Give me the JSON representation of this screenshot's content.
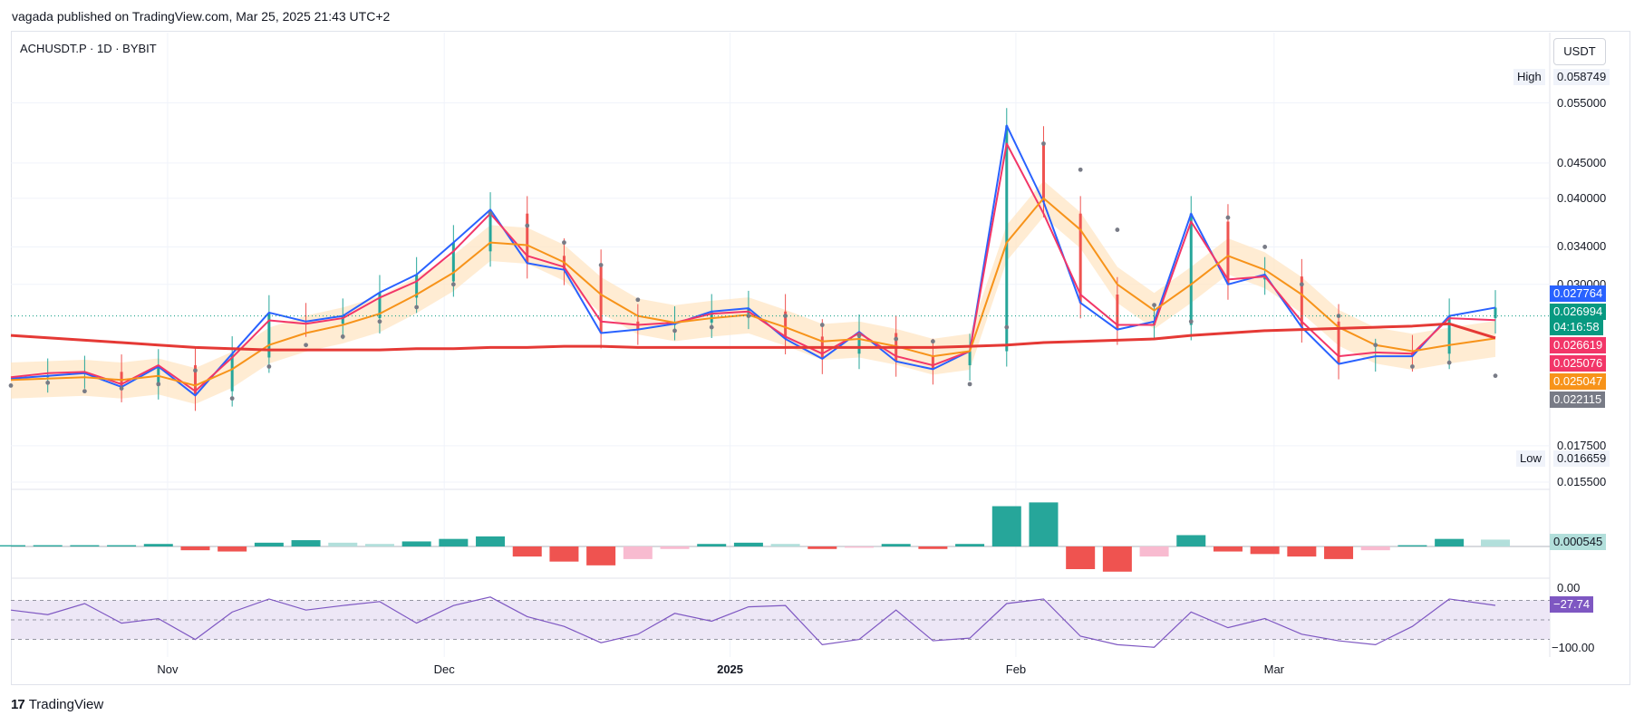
{
  "header": {
    "publish_line": "vagada published on TradingView.com, Mar 25, 2025 21:43 UTC+2",
    "symbol_line": "ACHUSDT.P · 1D · BYBIT",
    "currency_button": "USDT"
  },
  "footer": {
    "logo_mark": "17",
    "brand": "TradingView"
  },
  "colors": {
    "blue": "#2962ff",
    "pink": "#f23668",
    "orange": "#f7931a",
    "red_sma": "#e53935",
    "green_last": "#089981",
    "band": "#ffe4c0",
    "psar": "#787b86",
    "candle_up": "#26a69a",
    "candle_down": "#ef5350",
    "hist_up_strong": "#26a69a",
    "hist_up_weak": "#b2dfdb",
    "hist_down_strong": "#ef5350",
    "hist_down_weak": "#f8bbd0",
    "rsi_line": "#7e57c2",
    "rsi_band": "#ede7f6"
  },
  "price_axis": {
    "high_label": "High",
    "high_value": "0.058749",
    "low_label": "Low",
    "low_value": "0.016659",
    "ticks": [
      "0.055000",
      "0.045000",
      "0.040000",
      "0.034000",
      "0.030000",
      "0.017500",
      "0.015500"
    ],
    "tags": [
      {
        "value": "0.027764",
        "color": "#2962ff"
      },
      {
        "value": "0.026994",
        "color": "#089981"
      },
      {
        "value": "04:16:58",
        "color": "#089981"
      },
      {
        "value": "0.026619",
        "color": "#f23668"
      },
      {
        "value": "0.025076",
        "color": "#f23668"
      },
      {
        "value": "0.025047",
        "color": "#f7931a"
      },
      {
        "value": "0.022115",
        "color": "#787b86"
      }
    ]
  },
  "osc_axis": {
    "tag": "0.000545",
    "tag_color": "#b2dfdb"
  },
  "rsi_axis": {
    "top": "0.00",
    "bottom": "−100.00",
    "tag": "−27.74",
    "tag_color": "#7e57c2"
  },
  "x_axis": {
    "labels": [
      {
        "text": "Nov",
        "bold": false
      },
      {
        "text": "Dec",
        "bold": false
      },
      {
        "text": "2025",
        "bold": true
      },
      {
        "text": "Feb",
        "bold": false
      },
      {
        "text": "Mar",
        "bold": false
      }
    ]
  },
  "chart_data": {
    "type": "line",
    "log_scale": true,
    "grid": true,
    "ylim": [
      0.0155,
      0.0587
    ],
    "x": [
      "2024-10-15",
      "2024-10-19",
      "2024-10-23",
      "2024-10-27",
      "2024-10-31",
      "2024-11-04",
      "2024-11-08",
      "2024-11-12",
      "2024-11-16",
      "2024-11-20",
      "2024-11-24",
      "2024-11-28",
      "2024-12-02",
      "2024-12-06",
      "2024-12-10",
      "2024-12-14",
      "2024-12-18",
      "2024-12-22",
      "2024-12-26",
      "2024-12-30",
      "2025-01-03",
      "2025-01-07",
      "2025-01-11",
      "2025-01-15",
      "2025-01-19",
      "2025-01-23",
      "2025-01-27",
      "2025-01-31",
      "2025-02-04",
      "2025-02-08",
      "2025-02-12",
      "2025-02-16",
      "2025-02-20",
      "2025-02-24",
      "2025-02-28",
      "2025-03-04",
      "2025-03-08",
      "2025-03-12",
      "2025-03-16",
      "2025-03-20",
      "2025-03-25"
    ],
    "series": [
      {
        "values": [
          0.0219,
          0.0221,
          0.0223,
          0.0213,
          0.0228,
          0.0207,
          0.0238,
          0.0273,
          0.0265,
          0.027,
          0.0292,
          0.031,
          0.0345,
          0.0385,
          0.0322,
          0.0315,
          0.0255,
          0.0258,
          0.0263,
          0.0274,
          0.0277,
          0.025,
          0.0234,
          0.0256,
          0.0232,
          0.0226,
          0.024,
          0.051,
          0.0395,
          0.0282,
          0.0258,
          0.0265,
          0.038,
          0.03,
          0.031,
          0.026,
          0.023,
          0.0236,
          0.0236,
          0.027,
          0.02776
        ]
      },
      {
        "values": [
          0.022,
          0.0223,
          0.0224,
          0.0215,
          0.0229,
          0.021,
          0.0235,
          0.0266,
          0.0263,
          0.0268,
          0.0287,
          0.0303,
          0.0335,
          0.038,
          0.033,
          0.0318,
          0.0265,
          0.0262,
          0.0264,
          0.0272,
          0.0274,
          0.0252,
          0.0238,
          0.0255,
          0.0236,
          0.0229,
          0.024,
          0.048,
          0.038,
          0.029,
          0.0262,
          0.0262,
          0.037,
          0.0305,
          0.0308,
          0.0265,
          0.0236,
          0.0239,
          0.0238,
          0.0268,
          0.02662
        ]
      },
      {
        "values": [
          0.0218,
          0.0219,
          0.022,
          0.0218,
          0.0221,
          0.0214,
          0.0226,
          0.0245,
          0.0255,
          0.0262,
          0.0272,
          0.029,
          0.0312,
          0.0345,
          0.0342,
          0.0323,
          0.029,
          0.027,
          0.0264,
          0.0268,
          0.0271,
          0.026,
          0.0248,
          0.025,
          0.0244,
          0.0236,
          0.024,
          0.0345,
          0.04,
          0.036,
          0.03,
          0.0275,
          0.03,
          0.033,
          0.0315,
          0.029,
          0.026,
          0.0245,
          0.024,
          0.0245,
          0.02505
        ]
      },
      {
        "values": [
          0.0253,
          0.0251,
          0.0249,
          0.0247,
          0.0245,
          0.0243,
          0.0242,
          0.0241,
          0.0241,
          0.0241,
          0.0241,
          0.0242,
          0.0242,
          0.0243,
          0.0243,
          0.0244,
          0.0244,
          0.0243,
          0.0243,
          0.0243,
          0.0243,
          0.0243,
          0.0243,
          0.0243,
          0.0243,
          0.0243,
          0.0244,
          0.0245,
          0.0247,
          0.0248,
          0.0249,
          0.025,
          0.0253,
          0.0255,
          0.0257,
          0.0258,
          0.0259,
          0.026,
          0.0261,
          0.0263,
          0.02508
        ]
      },
      {
        "values": [
          0.0214,
          0.0216,
          0.021,
          0.0212,
          0.0215,
          0.0225,
          0.0205,
          0.0228,
          0.0245,
          0.0252,
          0.0265,
          0.0278,
          0.03,
          0.038,
          0.0365,
          0.0345,
          0.032,
          0.0285,
          0.0257,
          0.026,
          0.027,
          0.027,
          0.0262,
          0.0253,
          0.025,
          0.0248,
          0.0215,
          0.026,
          0.048,
          0.044,
          0.036,
          0.028,
          0.0265,
          0.0375,
          0.034,
          0.03,
          0.027,
          0.0245,
          0.0228,
          0.0231,
          0.02211
        ]
      }
    ],
    "oscillator": {
      "zero_based": true,
      "values": [
        0.0001,
        0.0001,
        0.0001,
        0.0001,
        0.0002,
        -0.0003,
        -0.0004,
        0.0003,
        0.0005,
        0.0003,
        0.0002,
        0.0004,
        0.0006,
        0.0008,
        -0.0008,
        -0.0012,
        -0.0015,
        -0.001,
        -0.0002,
        0.0002,
        0.0003,
        0.0002,
        -0.0002,
        -0.0001,
        0.0002,
        -0.0002,
        0.0002,
        0.0032,
        0.0035,
        -0.0018,
        -0.002,
        -0.0008,
        0.0009,
        -0.0004,
        -0.0006,
        -0.0008,
        -0.001,
        -0.0003,
        0.0001,
        0.0006,
        0.000545
      ]
    },
    "rsi_like": {
      "ylim": [
        -100,
        0
      ],
      "values": [
        -35,
        -42,
        -25,
        -55,
        -48,
        -80,
        -38,
        -18,
        -35,
        -28,
        -22,
        -55,
        -28,
        -15,
        -45,
        -60,
        -85,
        -72,
        -40,
        -52,
        -30,
        -28,
        -88,
        -80,
        -35,
        -82,
        -78,
        -25,
        -18,
        -75,
        -88,
        -92,
        -38,
        -62,
        -48,
        -72,
        -82,
        -88,
        -60,
        -18,
        -27.74
      ]
    }
  }
}
